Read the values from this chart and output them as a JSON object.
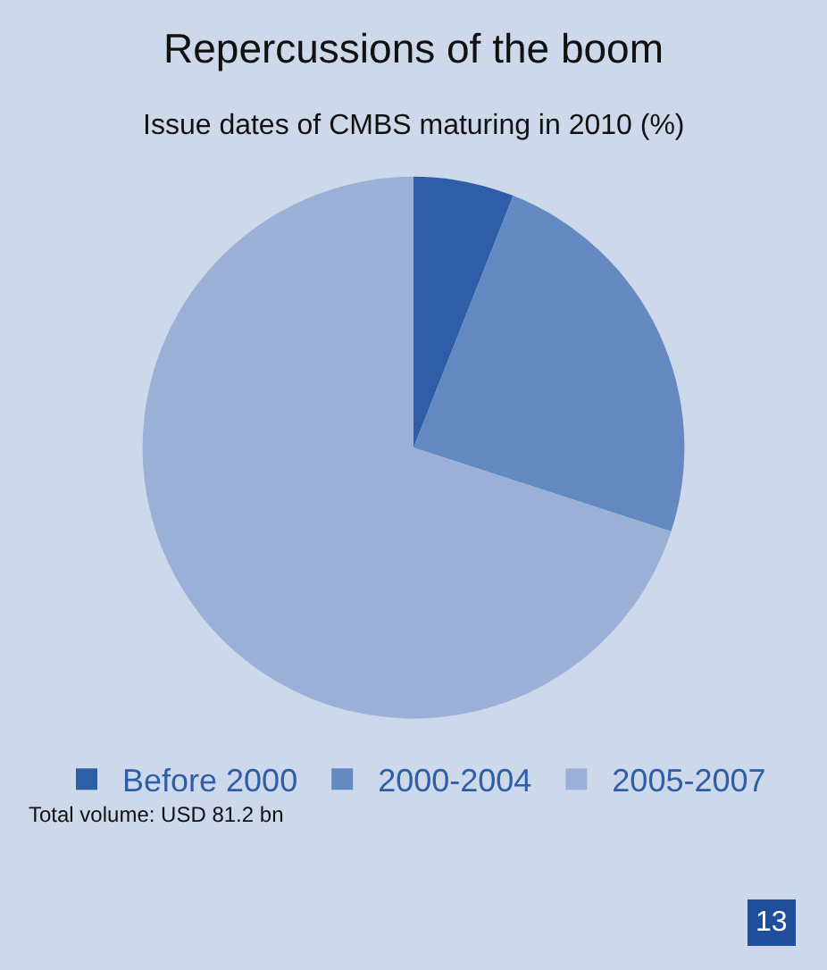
{
  "chart_data": {
    "type": "pie",
    "title": "Repercussions of the boom",
    "subtitle": "Issue dates of CMBS maturing in 2010 (%)",
    "categories": [
      "Before 2000",
      "2000-2004",
      "2005-2007"
    ],
    "values": [
      6,
      24,
      70
    ],
    "colors": [
      "#2e5ea8",
      "#6488c0",
      "#9bb0d6"
    ],
    "legend": "bottom",
    "annotations": [
      "Total volume: USD 81.2 bn",
      "13"
    ]
  }
}
